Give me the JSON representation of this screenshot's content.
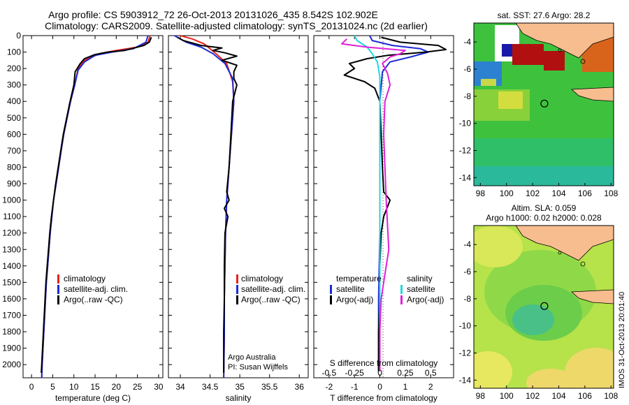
{
  "header": {
    "line1": "Argo profile: CS 5903912_72 26-Oct-2013 20131026_435 8.542S 102.902E",
    "line2": "Climatology: CARS2009. Satellite-adjusted climatology: synTS_20131024.nc (2d earlier)"
  },
  "side_stamp": "IMOS 31-Oct-2013 20:01:40",
  "colors": {
    "climatology": "#e8231c",
    "satellite": "#1b2bd6",
    "argo": "#000000",
    "sat_salinity": "#20d8e0",
    "argo_salinity": "#e020d8"
  },
  "depth_ticks": [
    0,
    100,
    200,
    300,
    400,
    500,
    600,
    700,
    800,
    900,
    1000,
    1100,
    1200,
    1300,
    1400,
    1500,
    1600,
    1700,
    1800,
    1900,
    2000
  ],
  "chart_data": [
    {
      "type": "line",
      "name": "temperature-profile",
      "xlabel": "temperature (deg C)",
      "xlim": [
        -2,
        31
      ],
      "ylim": [
        0,
        2080
      ],
      "xticks": [
        0,
        5,
        10,
        15,
        20,
        25,
        30
      ],
      "legend": [
        "climatology",
        "satellite-adj. clim.",
        "Argo(..raw -QC)"
      ],
      "series": [
        {
          "name": "climatology",
          "color_key": "climatology",
          "points": [
            [
              28,
              0
            ],
            [
              27.5,
              40
            ],
            [
              25,
              70
            ],
            [
              20,
              90
            ],
            [
              16,
              110
            ],
            [
              12.5,
              150
            ],
            [
              11,
              200
            ],
            [
              10.2,
              300
            ],
            [
              9.2,
              400
            ],
            [
              8.4,
              500
            ],
            [
              7.6,
              600
            ],
            [
              7,
              700
            ],
            [
              6.4,
              800
            ],
            [
              5.8,
              900
            ],
            [
              5.2,
              1000
            ],
            [
              4.8,
              1100
            ],
            [
              4.4,
              1200
            ],
            [
              4.1,
              1300
            ],
            [
              3.8,
              1400
            ],
            [
              3.5,
              1500
            ],
            [
              3.3,
              1600
            ],
            [
              3.1,
              1700
            ],
            [
              2.9,
              1800
            ],
            [
              2.7,
              1900
            ],
            [
              2.5,
              2000
            ],
            [
              2.4,
              2080
            ]
          ]
        },
        {
          "name": "satellite-adj. clim.",
          "color_key": "satellite",
          "points": [
            [
              27.5,
              0
            ],
            [
              27,
              40
            ],
            [
              24,
              80
            ],
            [
              19,
              100
            ],
            [
              15,
              120
            ],
            [
              12.5,
              160
            ],
            [
              11,
              210
            ],
            [
              10.2,
              300
            ],
            [
              9.2,
              400
            ],
            [
              8.4,
              500
            ],
            [
              7.6,
              600
            ],
            [
              7,
              700
            ],
            [
              6.4,
              800
            ],
            [
              5.8,
              900
            ],
            [
              5.2,
              1000
            ],
            [
              4.8,
              1100
            ],
            [
              4.4,
              1200
            ],
            [
              4.1,
              1300
            ],
            [
              3.8,
              1400
            ],
            [
              3.5,
              1500
            ],
            [
              3.3,
              1600
            ],
            [
              3.1,
              1700
            ],
            [
              2.9,
              1800
            ],
            [
              2.7,
              1900
            ],
            [
              2.5,
              2000
            ],
            [
              2.4,
              2080
            ]
          ]
        },
        {
          "name": "Argo(..raw -QC)",
          "color_key": "argo",
          "points": [
            [
              28.3,
              10
            ],
            [
              27.8,
              40
            ],
            [
              26.5,
              60
            ],
            [
              22,
              90
            ],
            [
              18,
              100
            ],
            [
              15,
              115
            ],
            [
              12.5,
              140
            ],
            [
              11.5,
              170
            ],
            [
              10.3,
              220
            ],
            [
              10,
              300
            ],
            [
              9.1,
              400
            ],
            [
              8.3,
              500
            ],
            [
              7.5,
              600
            ],
            [
              6.9,
              700
            ],
            [
              6.3,
              800
            ],
            [
              5.7,
              900
            ],
            [
              5.2,
              1000
            ],
            [
              4.7,
              1100
            ],
            [
              4.3,
              1200
            ],
            [
              4,
              1300
            ],
            [
              3.7,
              1400
            ],
            [
              3.4,
              1500
            ],
            [
              3.2,
              1600
            ],
            [
              3,
              1700
            ],
            [
              2.8,
              1800
            ],
            [
              2.6,
              1900
            ],
            [
              2.4,
              2000
            ],
            [
              2.3,
              2050
            ]
          ]
        }
      ]
    },
    {
      "type": "line",
      "name": "salinity-profile",
      "xlabel": "salinity",
      "xlim": [
        33.8,
        36.15
      ],
      "ylim": [
        0,
        2080
      ],
      "xticks": [
        34,
        34.5,
        35,
        35.5,
        36
      ],
      "legend": [
        "climatology",
        "satellite-adj. clim.",
        "Argo(..raw -QC)"
      ],
      "annotation": [
        "Argo Australia",
        "PI: Susan Wijffels"
      ],
      "series": [
        {
          "name": "climatology",
          "color_key": "climatology",
          "points": [
            [
              34,
              0
            ],
            [
              34.2,
              20
            ],
            [
              34.4,
              50
            ],
            [
              34.5,
              80
            ],
            [
              34.6,
              110
            ],
            [
              34.78,
              170
            ],
            [
              34.88,
              280
            ],
            [
              34.9,
              400
            ],
            [
              34.86,
              600
            ],
            [
              34.82,
              800
            ],
            [
              34.78,
              1000
            ],
            [
              34.76,
              1200
            ],
            [
              34.75,
              1400
            ],
            [
              34.74,
              1600
            ],
            [
              34.74,
              1800
            ],
            [
              34.73,
              2080
            ]
          ]
        },
        {
          "name": "satellite-adj. clim.",
          "color_key": "satellite",
          "points": [
            [
              33.9,
              0
            ],
            [
              34,
              20
            ],
            [
              34.1,
              40
            ],
            [
              34.35,
              70
            ],
            [
              34.55,
              110
            ],
            [
              34.75,
              170
            ],
            [
              34.88,
              260
            ],
            [
              34.9,
              400
            ],
            [
              34.86,
              600
            ],
            [
              34.82,
              800
            ],
            [
              34.78,
              1000
            ],
            [
              34.76,
              1200
            ],
            [
              34.75,
              1400
            ],
            [
              34.74,
              1600
            ],
            [
              34.74,
              1800
            ],
            [
              34.73,
              2080
            ]
          ]
        },
        {
          "name": "Argo(..raw -QC)",
          "color_key": "argo",
          "points": [
            [
              33.95,
              10
            ],
            [
              34.05,
              30
            ],
            [
              34.35,
              60
            ],
            [
              34.7,
              75
            ],
            [
              34.55,
              90
            ],
            [
              34.75,
              105
            ],
            [
              34.95,
              125
            ],
            [
              34.7,
              150
            ],
            [
              34.95,
              180
            ],
            [
              34.9,
              220
            ],
            [
              34.9,
              260
            ],
            [
              34.95,
              300
            ],
            [
              34.88,
              400
            ],
            [
              34.85,
              600
            ],
            [
              34.82,
              800
            ],
            [
              34.78,
              950
            ],
            [
              34.82,
              1000
            ],
            [
              34.74,
              1050
            ],
            [
              34.8,
              1100
            ],
            [
              34.75,
              1200
            ],
            [
              34.74,
              1400
            ],
            [
              34.74,
              1600
            ],
            [
              34.73,
              1800
            ],
            [
              34.73,
              2050
            ]
          ]
        }
      ]
    },
    {
      "type": "line",
      "name": "difference-profile",
      "xlabel": "T difference from climatology",
      "xlabel_top": "S difference from climatology",
      "xlim": [
        -2.6,
        2.9
      ],
      "ylim": [
        0,
        2080
      ],
      "xticks": [
        -2,
        -1,
        0,
        1,
        2
      ],
      "top_ticks": [
        {
          "label": "-0.5",
          "t": -2
        },
        {
          "label": "-0.25",
          "t": -1
        },
        {
          "label": "0",
          "t": 0
        },
        {
          "label": "0.25",
          "t": 1
        },
        {
          "label": "0.5",
          "t": 2
        }
      ],
      "legend_temperature": [
        "temperature",
        "satellite",
        "Argo(-adj)"
      ],
      "legend_salinity": [
        "salinity",
        "satellite",
        "Argo(-adj)"
      ],
      "series": [
        {
          "name": "temperature satellite",
          "color_key": "satellite",
          "points": [
            [
              -0.4,
              0
            ],
            [
              -0.3,
              30
            ],
            [
              0.5,
              60
            ],
            [
              1.6,
              80
            ],
            [
              1.9,
              100
            ],
            [
              1.2,
              130
            ],
            [
              0.4,
              160
            ],
            [
              0.1,
              220
            ],
            [
              0,
              400
            ],
            [
              0,
              800
            ],
            [
              0,
              1200
            ],
            [
              -0.05,
              1600
            ],
            [
              -0.05,
              2040
            ]
          ]
        },
        {
          "name": "temperature Argo(-adj)",
          "color_key": "argo",
          "points": [
            [
              0.05,
              10
            ],
            [
              0.8,
              40
            ],
            [
              2.3,
              60
            ],
            [
              2.6,
              85
            ],
            [
              1.8,
              100
            ],
            [
              0.3,
              120
            ],
            [
              -0.5,
              140
            ],
            [
              -1.2,
              170
            ],
            [
              -1,
              200
            ],
            [
              -1.4,
              240
            ],
            [
              -0.6,
              280
            ],
            [
              -0.2,
              320
            ],
            [
              0,
              400
            ],
            [
              0.05,
              600
            ],
            [
              0.1,
              800
            ],
            [
              0.15,
              950
            ],
            [
              0.4,
              1000
            ],
            [
              0.15,
              1100
            ],
            [
              0.05,
              1200
            ],
            [
              0,
              1400
            ],
            [
              0,
              1600
            ],
            [
              -0.05,
              1800
            ],
            [
              -0.05,
              2040
            ]
          ]
        },
        {
          "name": "salinity satellite",
          "color_key": "sat_salinity",
          "points": [
            [
              -1,
              0
            ],
            [
              -0.9,
              30
            ],
            [
              -0.5,
              70
            ],
            [
              -0.3,
              110
            ],
            [
              -0.1,
              160
            ],
            [
              0,
              250
            ],
            [
              0,
              400
            ],
            [
              0,
              800
            ],
            [
              0,
              1200
            ],
            [
              0,
              1600
            ],
            [
              0,
              2040
            ]
          ]
        },
        {
          "name": "salinity Argo(-adj)",
          "color_key": "argo_salinity",
          "points": [
            [
              -1.3,
              20
            ],
            [
              -1.5,
              50
            ],
            [
              -0.5,
              70
            ],
            [
              0.2,
              80
            ],
            [
              1,
              90
            ],
            [
              0.8,
              110
            ],
            [
              0.4,
              130
            ],
            [
              0.1,
              170
            ],
            [
              0.3,
              230
            ],
            [
              0.4,
              300
            ],
            [
              0.2,
              400
            ],
            [
              0.15,
              600
            ],
            [
              0.2,
              800
            ],
            [
              0.25,
              1000
            ],
            [
              0.35,
              1300
            ],
            [
              0.2,
              1450
            ],
            [
              0.05,
              1600
            ],
            [
              0,
              1800
            ],
            [
              0,
              2040
            ]
          ]
        }
      ]
    },
    {
      "type": "heatmap",
      "name": "sst-map",
      "title": "sat. SST: 27.6  Argo: 28.2",
      "xticks": [
        98,
        100,
        102,
        104,
        106,
        108
      ],
      "yticks": [
        -4,
        -6,
        -8,
        -10,
        -12,
        -14
      ],
      "xlim": [
        97.5,
        108.2
      ],
      "ylim": [
        -14.6,
        -2.6
      ],
      "argo_position": [
        102.9,
        -8.54
      ]
    },
    {
      "type": "heatmap",
      "name": "sla-map",
      "title": "Altim. SLA: 0.059",
      "subtitle": "Argo h1000: 0.02  h2000: 0.028",
      "xticks": [
        98,
        100,
        102,
        104,
        106,
        108
      ],
      "yticks": [
        -4,
        -6,
        -8,
        -10,
        -12,
        -14
      ],
      "xlim": [
        97.5,
        108.2
      ],
      "ylim": [
        -14.6,
        -2.6
      ],
      "argo_position": [
        102.9,
        -8.54
      ]
    }
  ]
}
